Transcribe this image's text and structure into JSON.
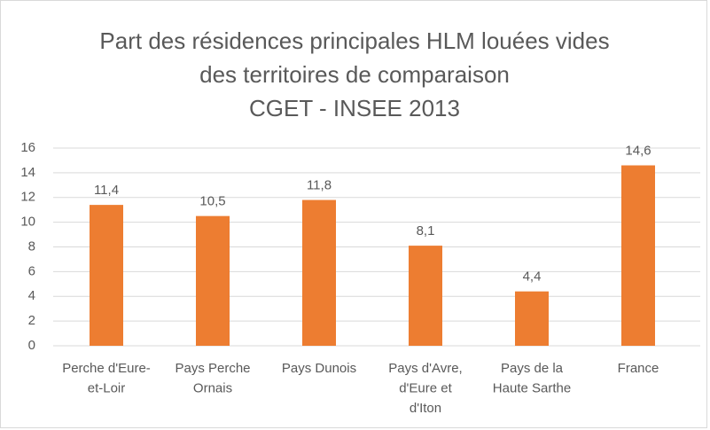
{
  "chart_data": {
    "type": "bar",
    "title": [
      "Part des résidences principales HLM louées vides",
      "des territoires de comparaison",
      "CGET - INSEE 2013"
    ],
    "categories": [
      [
        "Perche d'Eure-",
        "et-Loir"
      ],
      [
        "Pays Perche",
        "Ornais"
      ],
      [
        "Pays Dunois"
      ],
      [
        "Pays d'Avre,",
        "d'Eure et",
        "d'Iton"
      ],
      [
        "Pays de la",
        "Haute Sarthe"
      ],
      [
        "France"
      ]
    ],
    "values": [
      11.4,
      10.5,
      11.8,
      8.1,
      4.4,
      14.6
    ],
    "value_labels": [
      "11,4",
      "10,5",
      "11,8",
      "8,1",
      "4,4",
      "14,6"
    ],
    "color": "#ed7d31",
    "ylim": [
      0,
      16
    ],
    "yticks": [
      0,
      2,
      4,
      6,
      8,
      10,
      12,
      14,
      16
    ],
    "grid": true
  }
}
